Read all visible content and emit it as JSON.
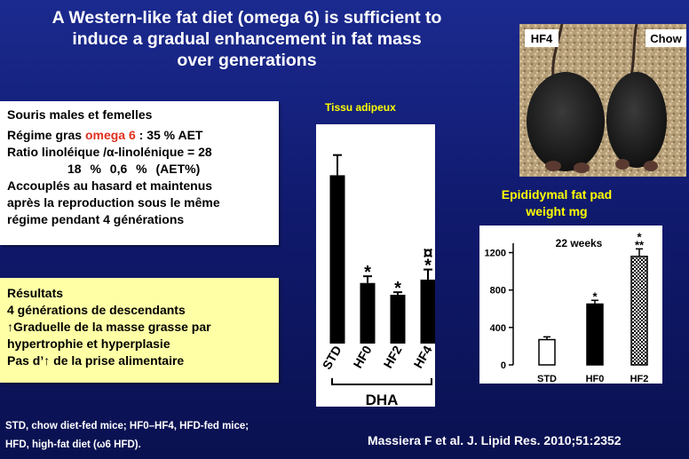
{
  "title_lines": [
    "A Western-like fat diet (omega 6) is sufficient to",
    "induce a gradual enhancement in fat mass",
    "over generations"
  ],
  "methods": {
    "line1": "Souris males et femelles",
    "line2_prefix": "Régime gras ",
    "line2_highlight": "omega 6",
    "line2_suffix": " :  35 % AET",
    "line3": "Ratio linoléique /α-linolénique = 28",
    "line4": "18 %       0,6 %     (AET%)",
    "line5": "Accouplés au hasard et maintenus",
    "line6": "après la reproduction sous le même",
    "line7": "régime pendant 4 générations"
  },
  "results": {
    "heading": "Résultats",
    "line1": "4 générations de descendants",
    "line2": "Graduelle de la masse grasse par",
    "line3": "hypertrophie et hyperplasie",
    "line4_a": "Pas d’",
    "line4_b": " de la prise alimentaire"
  },
  "chart1_label": "Tissu adipeux",
  "epi_label_lines": [
    "Epididymal fat pad",
    "weight mg"
  ],
  "photo_labels": {
    "left": "HF4",
    "right": "Chow"
  },
  "footnote_lines": [
    "STD, chow diet-fed mice; HF0–HF4, HFD-fed mice;",
    "HFD, high-fat diet (ω6 HFD)."
  ],
  "citation": "Massiera F et al. J. Lipid Res. 2010;51:2352",
  "colors": {
    "accent_red": "#e0301e",
    "label_yellow": "#ffff00",
    "results_bg": "#ffffa6"
  },
  "chart_data": [
    {
      "type": "bar",
      "title": "Tissu adipeux",
      "categories": [
        "STD",
        "HF0",
        "HF2",
        "HF4"
      ],
      "values": [
        1.0,
        0.36,
        0.29,
        0.38
      ],
      "errors": [
        0.12,
        0.04,
        0.015,
        0.06
      ],
      "annotations": [
        "",
        "*",
        "*",
        "¤\n*"
      ],
      "group_label": "DHA",
      "ylim": [
        0,
        1.25
      ],
      "yaxis_visible": false
    },
    {
      "type": "bar",
      "title": "22 weeks",
      "categories": [
        "STD",
        "HF0",
        "HF2"
      ],
      "values": [
        270,
        650,
        1160
      ],
      "errors": [
        30,
        40,
        80
      ],
      "annotations": [
        "",
        "*",
        "*\n**"
      ],
      "fills": [
        "white",
        "black",
        "checker"
      ],
      "yticks": [
        0,
        400,
        800,
        1200
      ],
      "ylim": [
        0,
        1300
      ],
      "ylabel": "Epididymal fat pad weight mg"
    }
  ]
}
